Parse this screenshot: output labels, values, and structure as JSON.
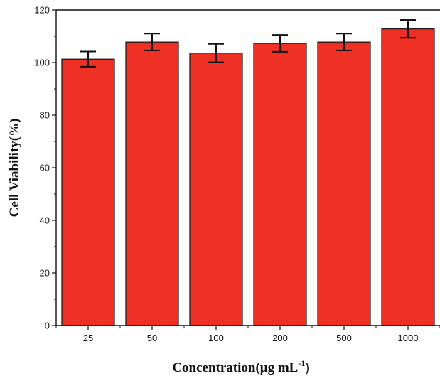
{
  "chart_data": {
    "type": "bar",
    "categories": [
      "25",
      "50",
      "100",
      "200",
      "500",
      "1000"
    ],
    "values": [
      101.3,
      107.8,
      103.6,
      107.3,
      107.8,
      112.8
    ],
    "errors": [
      2.9,
      3.2,
      3.5,
      3.2,
      3.2,
      3.4
    ],
    "xlabel_main": "Concentration(μg mL",
    "xlabel_sup": "-1",
    "xlabel_end": ")",
    "ylabel": "Cell Viability(%)",
    "ylim": [
      0,
      120
    ],
    "yticks": [
      0,
      20,
      40,
      60,
      80,
      100,
      120
    ],
    "bar_color": "#ee3124",
    "grid": false,
    "legend": "none"
  }
}
